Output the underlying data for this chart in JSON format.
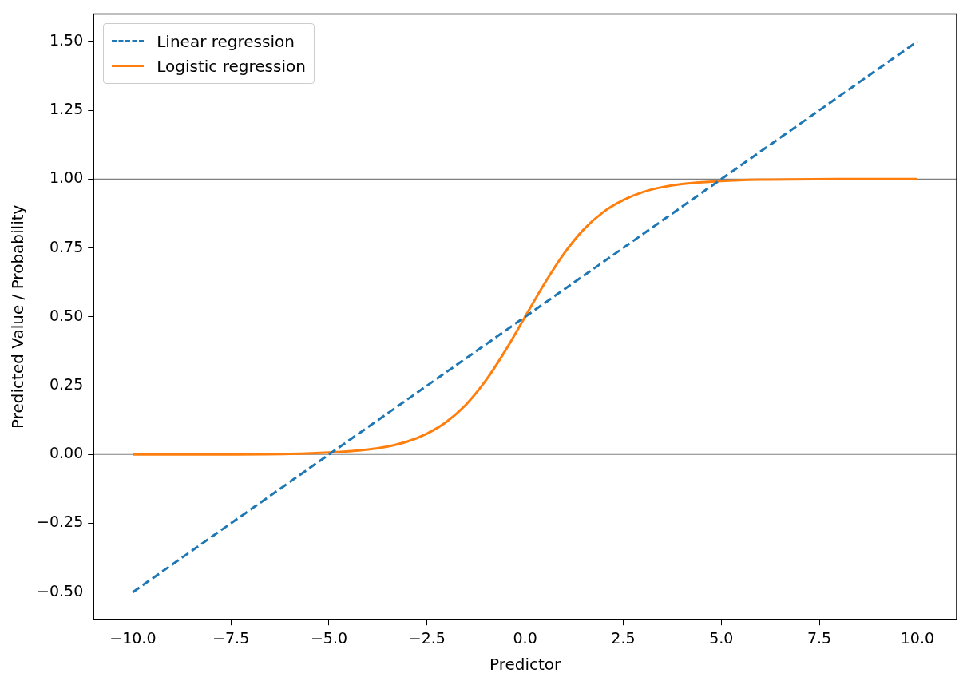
{
  "chart_data": {
    "type": "line",
    "xlabel": "Predictor",
    "ylabel": "Predicted Value / Probability",
    "xlim": [
      -11,
      11
    ],
    "ylim": [
      -0.6,
      1.6
    ],
    "xticks": [
      {
        "value": -10,
        "label": "−10.0"
      },
      {
        "value": -7.5,
        "label": "−7.5"
      },
      {
        "value": -5,
        "label": "−5.0"
      },
      {
        "value": -2.5,
        "label": "−2.5"
      },
      {
        "value": 0,
        "label": "0.0"
      },
      {
        "value": 2.5,
        "label": "2.5"
      },
      {
        "value": 5,
        "label": "5.0"
      },
      {
        "value": 7.5,
        "label": "7.5"
      },
      {
        "value": 10,
        "label": "10.0"
      }
    ],
    "yticks": [
      {
        "value": -0.5,
        "label": "−0.50"
      },
      {
        "value": -0.25,
        "label": "−0.25"
      },
      {
        "value": 0,
        "label": "0.00"
      },
      {
        "value": 0.25,
        "label": "0.25"
      },
      {
        "value": 0.5,
        "label": "0.50"
      },
      {
        "value": 0.75,
        "label": "0.75"
      },
      {
        "value": 1,
        "label": "1.00"
      },
      {
        "value": 1.25,
        "label": "1.25"
      },
      {
        "value": 1.5,
        "label": "1.50"
      }
    ],
    "series": [
      {
        "name": "Linear regression",
        "color": "#1f77b4",
        "line_style": "dashed",
        "x": [
          -10,
          10
        ],
        "values": [
          -0.5,
          1.5
        ]
      },
      {
        "name": "Logistic regression",
        "color": "#ff7f0e",
        "line_style": "solid",
        "x": [
          -10,
          -8,
          -6,
          -5,
          -4,
          -3.5,
          -3,
          -2.5,
          -2,
          -1.5,
          -1,
          -0.5,
          0,
          0.5,
          1,
          1.5,
          2,
          2.5,
          3,
          3.5,
          4,
          5,
          6,
          8,
          10
        ],
        "values": [
          0,
          0,
          0.002,
          0.007,
          0.018,
          0.029,
          0.047,
          0.076,
          0.119,
          0.182,
          0.269,
          0.378,
          0.5,
          0.622,
          0.731,
          0.818,
          0.881,
          0.924,
          0.953,
          0.971,
          0.982,
          0.993,
          0.998,
          1,
          1
        ]
      }
    ],
    "ref_lines": [
      {
        "axis": "y",
        "value": 0,
        "color": "#808080"
      },
      {
        "axis": "y",
        "value": 1,
        "color": "#808080"
      }
    ],
    "legend": "top left",
    "marker": "none",
    "grid": false
  }
}
